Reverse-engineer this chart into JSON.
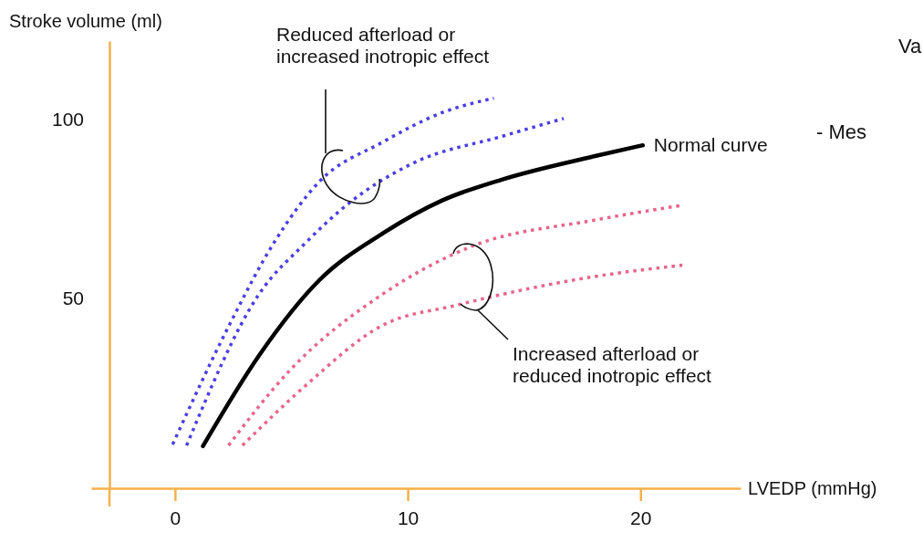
{
  "chart_data": {
    "type": "line",
    "xlabel": "LVEDP (mmHg)",
    "ylabel": "Stroke volume (ml)",
    "xlim": [
      -3.6,
      24.3
    ],
    "ylim": [
      -3.3,
      122
    ],
    "xticks": [
      0,
      10,
      20
    ],
    "yticks": [
      50,
      100
    ],
    "grid": false,
    "legend": false,
    "marker": "none",
    "series": [
      {
        "name": "Normal curve",
        "color": "#000000",
        "line_style": "solid",
        "x": [
          1.2,
          3.6,
          6.2,
          8.9,
          11.5,
          14.1,
          18,
          20.1
        ],
        "values": [
          8.5,
          33.8,
          55,
          68,
          77.4,
          83.3,
          89.7,
          92.8
        ]
      },
      {
        "color": "#4b3ee6",
        "line_style": "dotted",
        "x": [
          -0.1,
          2.3,
          4.3,
          6.2,
          8.9,
          11.5,
          13.7
        ],
        "values": [
          9,
          42,
          66,
          82.6,
          93.6,
          102,
          106
        ]
      },
      {
        "color": "#4b3ee6",
        "line_style": "dotted",
        "x": [
          0.5,
          3.6,
          5.6,
          7.5,
          10.2,
          14.1,
          16.7
        ],
        "values": [
          8.7,
          51,
          65.4,
          76.7,
          87.7,
          95.4,
          100.3
        ]
      },
      {
        "color": "#e8648a",
        "line_style": "dotted",
        "x": [
          2.3,
          4.9,
          8.9,
          12.8,
          18,
          21.8
        ],
        "values": [
          8.7,
          29.5,
          51,
          64.6,
          71.8,
          76
        ]
      },
      {
        "color": "#e8648a",
        "line_style": "dotted",
        "x": [
          2.9,
          5.6,
          8.9,
          12.1,
          18,
          21.8
        ],
        "values": [
          8.7,
          25.4,
          42.3,
          48,
          56,
          59.2
        ]
      }
    ],
    "annotations": [
      "Reduced afterload or\nincreased inotropic effect",
      "Increased afterload or\nreduced inotropic effect",
      "Va",
      "- Mes"
    ]
  }
}
